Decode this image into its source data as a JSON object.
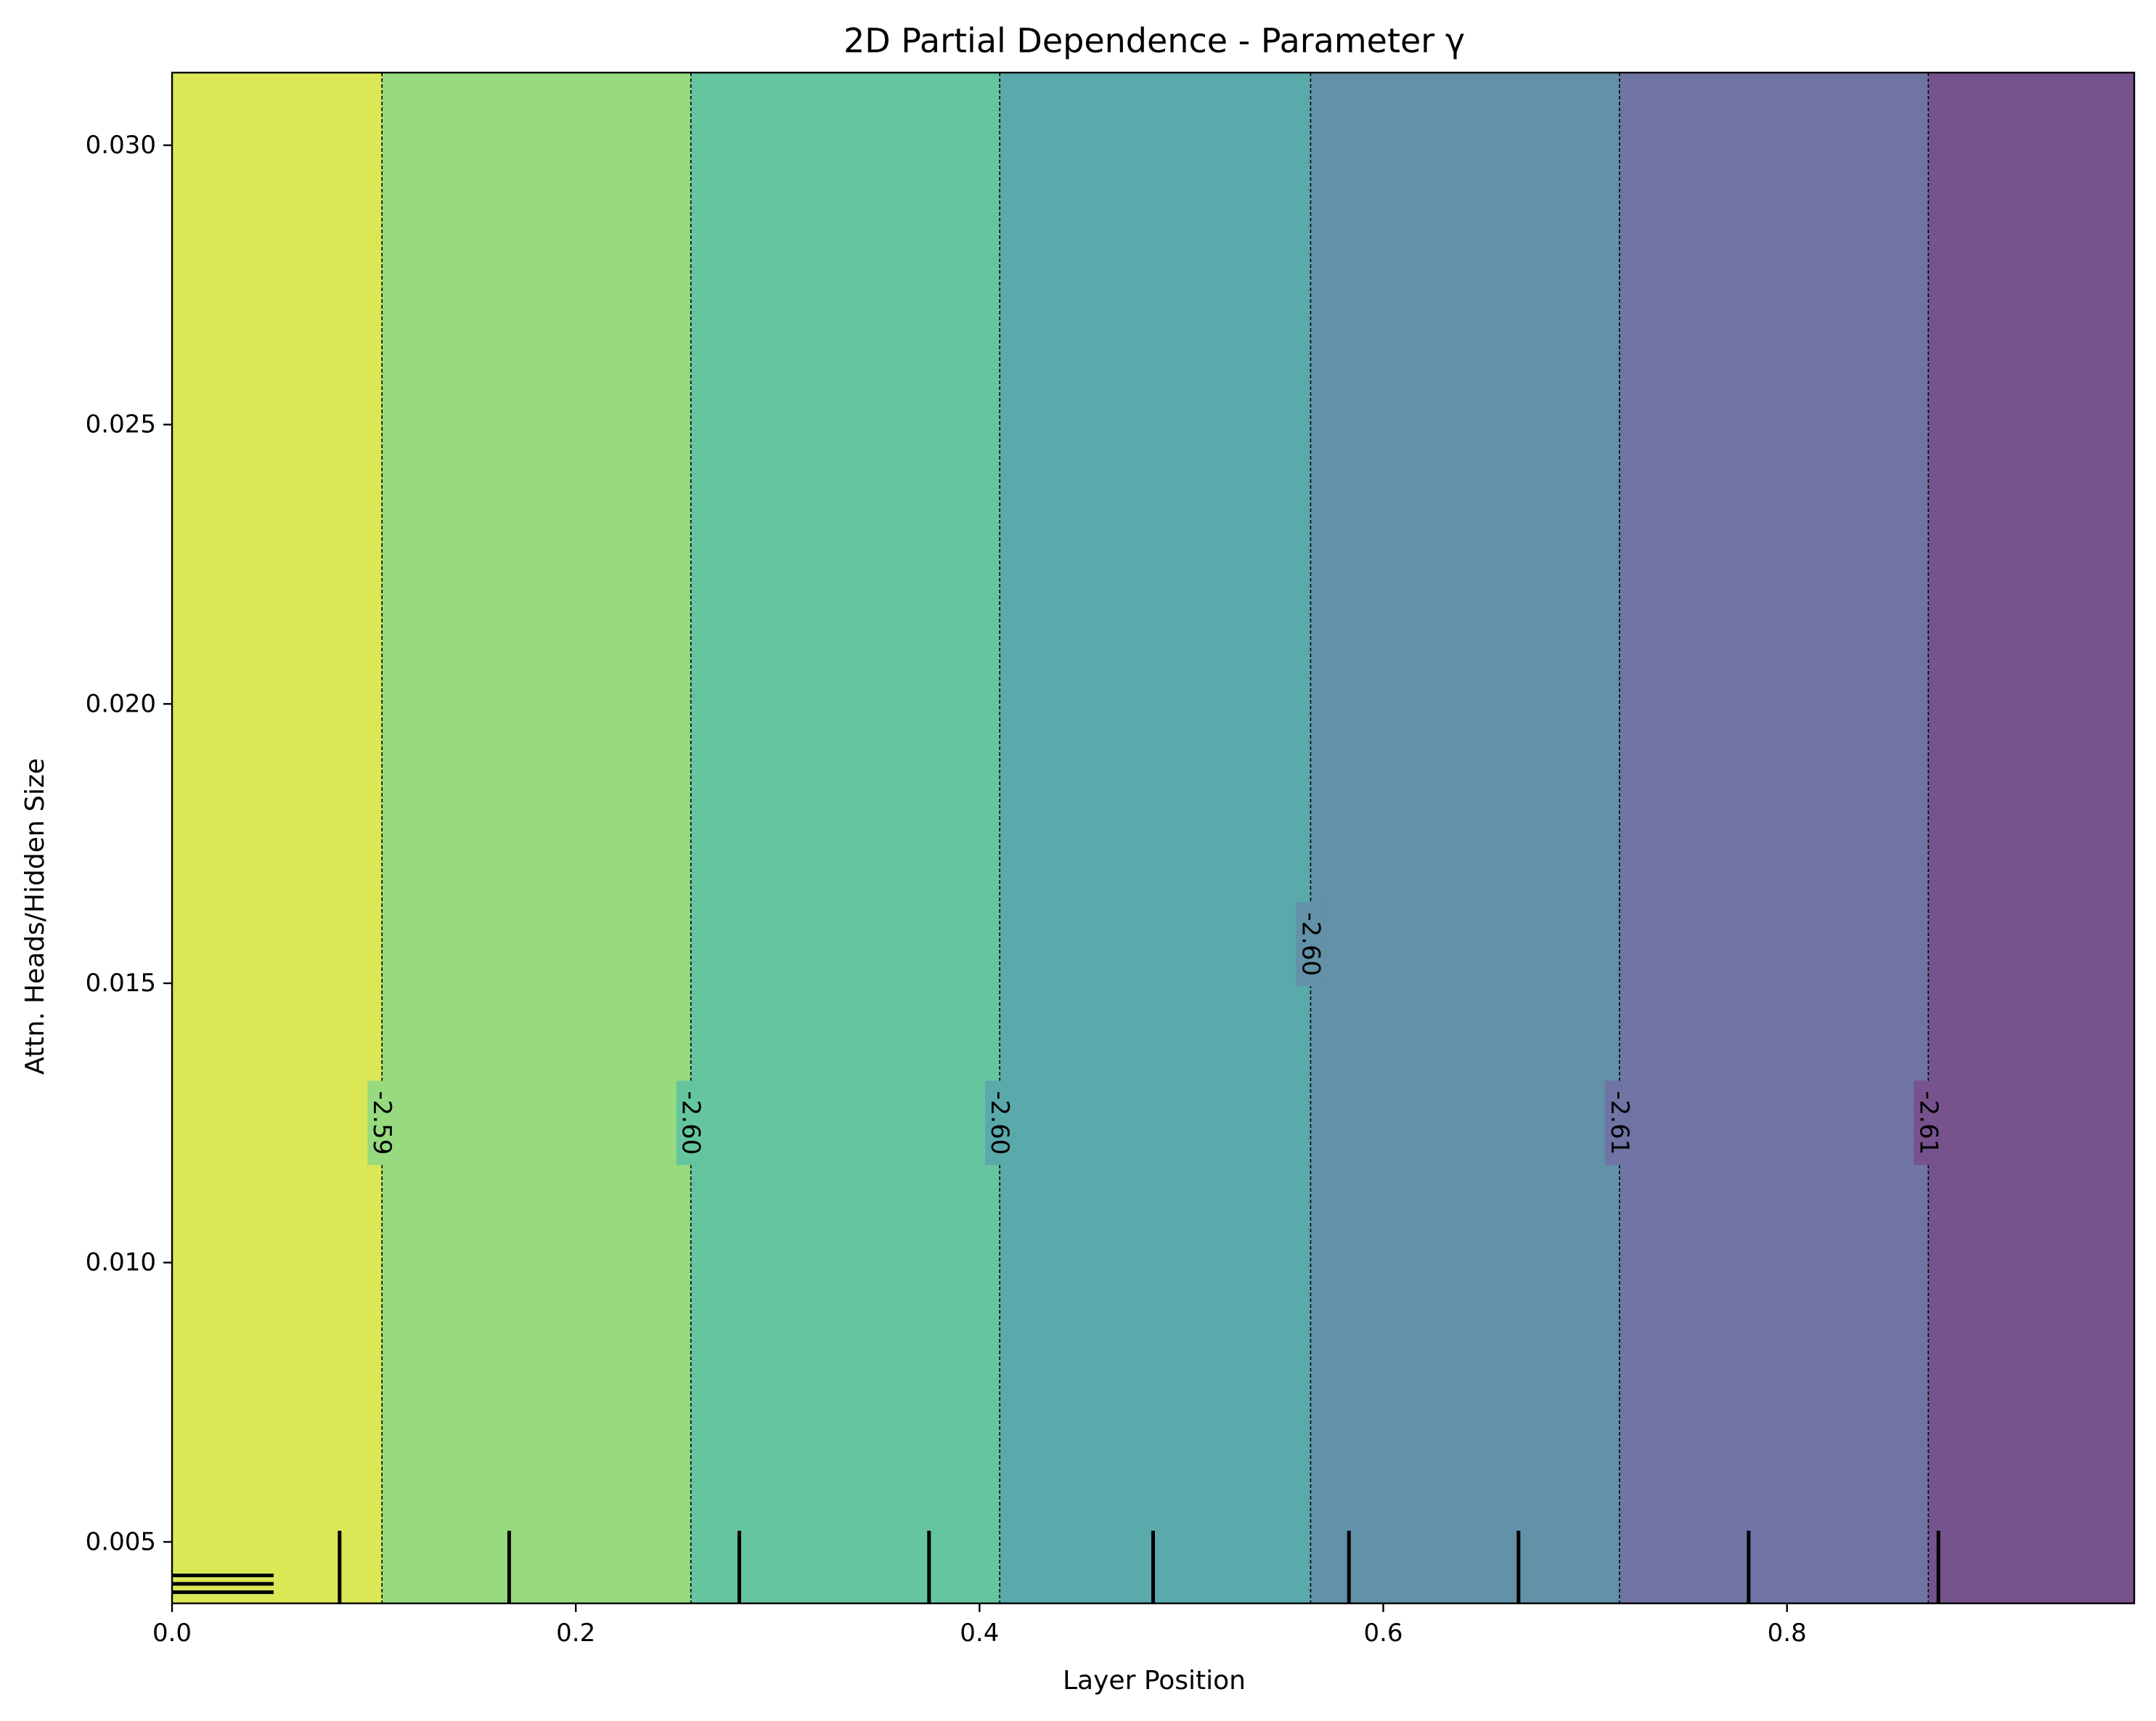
{
  "chart_data": {
    "type": "heatmap",
    "title": "2D Partial Dependence - Parameter γ",
    "xlabel": "Layer Position",
    "ylabel": "Attn. Heads/Hidden Size",
    "xlim": [
      0.0,
      0.972
    ],
    "ylim": [
      0.0039,
      0.0313
    ],
    "x_ticks": [
      {
        "value": 0.0,
        "label": "0.0"
      },
      {
        "value": 0.2,
        "label": "0.2"
      },
      {
        "value": 0.4,
        "label": "0.4"
      },
      {
        "value": 0.6,
        "label": "0.6"
      },
      {
        "value": 0.8,
        "label": "0.8"
      }
    ],
    "y_ticks": [
      {
        "value": 0.005,
        "label": "0.005"
      },
      {
        "value": 0.01,
        "label": "0.010"
      },
      {
        "value": 0.015,
        "label": "0.015"
      },
      {
        "value": 0.02,
        "label": "0.020"
      },
      {
        "value": 0.025,
        "label": "0.025"
      },
      {
        "value": 0.03,
        "label": "0.030"
      }
    ],
    "bands": [
      {
        "x0": 0.0,
        "x1": 0.104,
        "color": "#dae856"
      },
      {
        "x0": 0.104,
        "x1": 0.257,
        "color": "#97da7f"
      },
      {
        "x0": 0.257,
        "x1": 0.41,
        "color": "#65c59e"
      },
      {
        "x0": 0.41,
        "x1": 0.564,
        "color": "#5aa9ab"
      },
      {
        "x0": 0.564,
        "x1": 0.717,
        "color": "#6291a8"
      },
      {
        "x0": 0.717,
        "x1": 0.87,
        "color": "#6f74a4"
      },
      {
        "x0": 0.87,
        "x1": 0.972,
        "color": "#76538c"
      }
    ],
    "contours": [
      {
        "x": 0.104,
        "label": "-2.59",
        "label_y": 0.0125
      },
      {
        "x": 0.257,
        "label": "-2.60",
        "label_y": 0.0125
      },
      {
        "x": 0.41,
        "label": "-2.60",
        "label_y": 0.0125
      },
      {
        "x": 0.564,
        "label": "-2.60",
        "label_y": 0.0157
      },
      {
        "x": 0.717,
        "label": "-2.61",
        "label_y": 0.0125
      },
      {
        "x": 0.87,
        "label": "-2.61",
        "label_y": 0.0125
      }
    ],
    "x_rug": [
      0.083,
      0.167,
      0.281,
      0.375,
      0.486,
      0.583,
      0.667,
      0.781,
      0.875
    ],
    "y_rug": [
      0.0041,
      0.00425,
      0.0044
    ],
    "grid": false,
    "legend": "none"
  }
}
